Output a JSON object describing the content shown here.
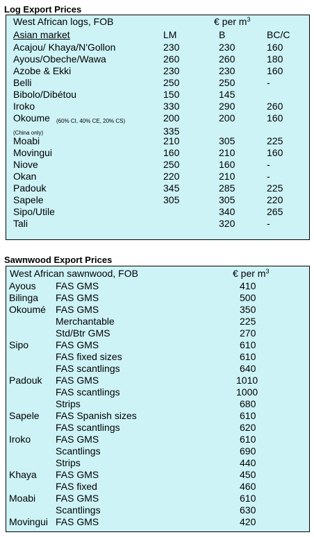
{
  "log_table": {
    "title": "Log Export Prices",
    "header": "West African logs, FOB",
    "unit": "€ per m",
    "unit_sup": "3",
    "market": "Asian market",
    "columns": [
      "LM",
      "B",
      "BC/C"
    ],
    "rows": [
      {
        "name": "Acajou/ Khaya/N'Gollon",
        "lm": "230",
        "b": "230",
        "bcc": "160"
      },
      {
        "name": "Ayous/Obeche/Wawa",
        "lm": "260",
        "b": "260",
        "bcc": "180"
      },
      {
        "name": "Azobe & Ekki",
        "lm": "230",
        "b": "230",
        "bcc": "160"
      },
      {
        "name": "Belli",
        "lm": "250",
        "b": "250",
        "bcc": "-"
      },
      {
        "name": "Bibolo/Dibétou",
        "lm": "150",
        "b": "145",
        "bcc": ""
      },
      {
        "name": "Iroko",
        "lm": "330",
        "b": "290",
        "bcc": "260"
      },
      {
        "name": "Okoume",
        "note": "(60% CI, 40% CE, 20% CS)",
        "lm": "200",
        "b": "200",
        "bcc": "160"
      },
      {
        "name": "",
        "note": "(China only)",
        "lm": "335",
        "b": "",
        "bcc": ""
      },
      {
        "name": "Moabi",
        "lm": "210",
        "b": "305",
        "bcc": "225"
      },
      {
        "name": "Movingui",
        "lm": "160",
        "b": "210",
        "bcc": "160"
      },
      {
        "name": "Niove",
        "lm": "250",
        "b": "160",
        "bcc": "-"
      },
      {
        "name": "Okan",
        "lm": "220",
        "b": "210",
        "bcc": "-"
      },
      {
        "name": "Padouk",
        "lm": "345",
        "b": "285",
        "bcc": "225"
      },
      {
        "name": "Sapele",
        "lm": "305",
        "b": "305",
        "bcc": "220"
      },
      {
        "name": "Sipo/Utile",
        "lm": "",
        "b": "340",
        "bcc": "265"
      },
      {
        "name": "Tali",
        "lm": "",
        "b": "320",
        "bcc": "-"
      }
    ]
  },
  "sawn_table": {
    "title": "Sawnwood Export Prices",
    "header": "West African sawnwood, FOB",
    "unit": "€ per m",
    "unit_sup": "3",
    "rows": [
      {
        "species": "Ayous",
        "grade": "FAS GMS",
        "price": "410"
      },
      {
        "species": "Bilinga",
        "grade": "FAS GMS",
        "price": "500"
      },
      {
        "species": "Okoumé",
        "grade": "FAS GMS",
        "price": "350"
      },
      {
        "species": "",
        "grade": "Merchantable",
        "price": "225"
      },
      {
        "species": "",
        "grade": "Std/Btr GMS",
        "price": "270"
      },
      {
        "species": "Sipo",
        "grade": "FAS GMS",
        "price": "610"
      },
      {
        "species": "",
        "grade": "FAS fixed sizes",
        "price": "610"
      },
      {
        "species": "",
        "grade": "FAS scantlings",
        "price": "640"
      },
      {
        "species": "Padouk",
        "grade": "FAS GMS",
        "price": "1010"
      },
      {
        "species": "",
        "grade": "FAS scantlings",
        "price": "1000"
      },
      {
        "species": "",
        "grade": "Strips",
        "price": "680"
      },
      {
        "species": "Sapele",
        "grade": "FAS Spanish sizes",
        "price": "610"
      },
      {
        "species": "",
        "grade": "FAS scantlings",
        "price": "620"
      },
      {
        "species": "Iroko",
        "grade": "FAS GMS",
        "price": "610"
      },
      {
        "species": "",
        "grade": "Scantlings",
        "price": "690"
      },
      {
        "species": "",
        "grade": "Strips",
        "price": "440"
      },
      {
        "species": "Khaya",
        "grade": "FAS GMS",
        "price": "450"
      },
      {
        "species": "",
        "grade": "FAS fixed",
        "price": "460"
      },
      {
        "species": "Moabi",
        "grade": "FAS GMS",
        "price": "610"
      },
      {
        "species": "",
        "grade": "Scantlings",
        "price": "630"
      },
      {
        "species": "Movingui",
        "grade": "FAS GMS",
        "price": "420"
      }
    ]
  }
}
